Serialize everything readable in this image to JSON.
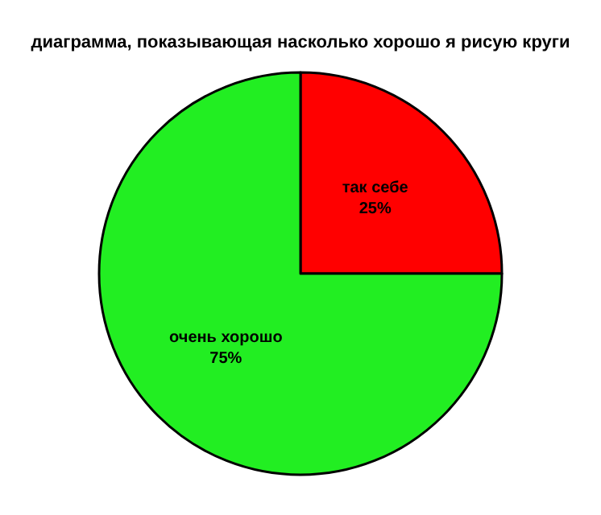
{
  "chart_data": {
    "type": "pie",
    "title": "диаграмма, показывающая насколько хорошо я рисую круги",
    "categories": [
      "так себе",
      "очень хорошо"
    ],
    "values": [
      25,
      75
    ],
    "colors": [
      "#ff0000",
      "#22ee22"
    ],
    "value_labels": [
      "25%",
      "75%"
    ],
    "legend": false
  }
}
